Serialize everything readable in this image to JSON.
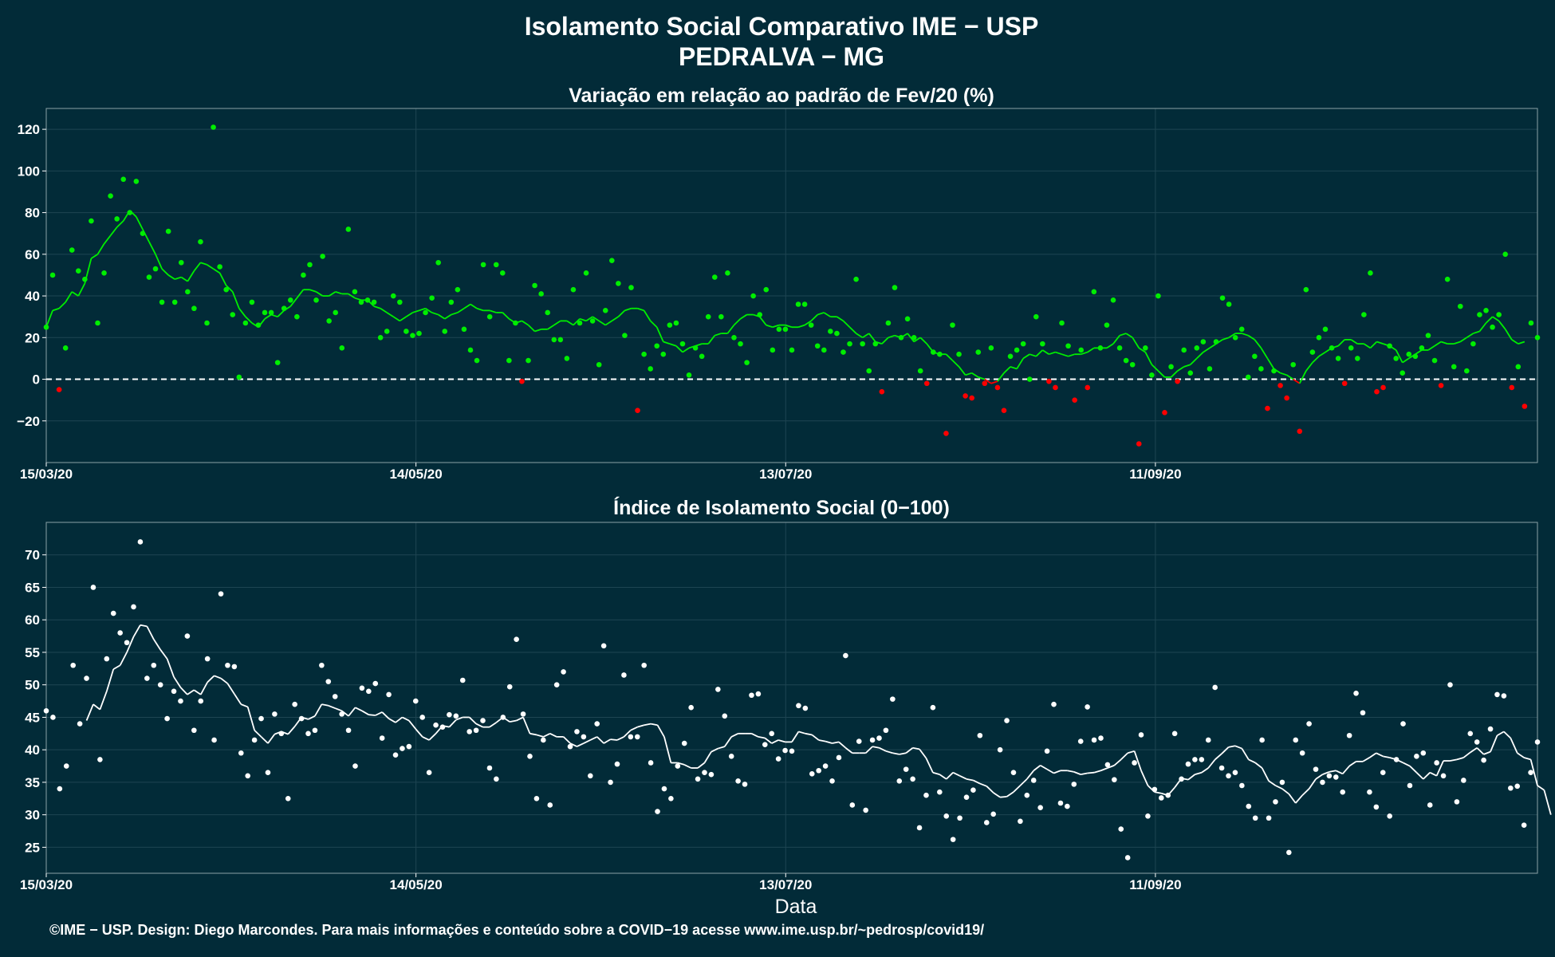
{
  "title_line1": "Isolamento Social Comparativo IME − USP",
  "title_line2": "PEDRALVA − MG",
  "footer": "©IME − USP. Design: Diego Marcondes. Para mais informações e conteúdo sobre a COVID−19 acesse www.ime.usp.br/~pedrosp/covid19/",
  "colors": {
    "background": "#022b38",
    "above_zero": "#00ee00",
    "below_zero": "#ff0000",
    "index_series": "#ffffff",
    "grid": "#1e4552"
  },
  "chart_data": [
    {
      "type": "scatter",
      "title": "Variação em relação ao padrão de Fev/20 (%)",
      "xlabel": "",
      "ylabel": "",
      "x_start": "2020-03-15",
      "x_end": "2020-11-12",
      "x_ticks": [
        "15/03/20",
        "14/05/20",
        "13/07/20",
        "11/09/20"
      ],
      "y_ticks": [
        "−20",
        "0",
        "20",
        "40",
        "60",
        "80",
        "100",
        "120"
      ],
      "ylim": [
        -40,
        130
      ],
      "reference_line": 0,
      "grid": true,
      "series": [
        {
          "values": [
            25,
            50,
            -5,
            15,
            62,
            52,
            48,
            76,
            27,
            51,
            88,
            77,
            96,
            80,
            95,
            70,
            49,
            53,
            37,
            71,
            37,
            56,
            42,
            34,
            66,
            27,
            121,
            54,
            43,
            31,
            1,
            27,
            37,
            26,
            32,
            32,
            8,
            34,
            38,
            30,
            50,
            55,
            38,
            59,
            28,
            32,
            15,
            72,
            42,
            37,
            38,
            37,
            20,
            23,
            40,
            37,
            23,
            21,
            22,
            32,
            39,
            56,
            23,
            37,
            43,
            24,
            14,
            9,
            55,
            30,
            55,
            51,
            9,
            27,
            -1,
            9,
            45,
            41,
            32,
            19,
            19,
            10,
            43,
            27,
            51,
            28,
            7,
            33,
            57,
            46,
            21,
            44,
            -15,
            12,
            5,
            16,
            12,
            26,
            27,
            17,
            2,
            15,
            11,
            30,
            49,
            30,
            51,
            20,
            17,
            8,
            40,
            31,
            43,
            14,
            24,
            24,
            14,
            36,
            36,
            26,
            16,
            14,
            23,
            22,
            13,
            17,
            48,
            17,
            4,
            17,
            -6,
            27,
            44,
            20,
            29,
            20,
            4,
            -2,
            13,
            12,
            -26,
            26,
            12,
            -8,
            -9,
            13,
            -2,
            15,
            -4,
            -15,
            11,
            14,
            17,
            0,
            30,
            17,
            -1,
            -4,
            27,
            16,
            -10,
            14,
            -4,
            42,
            15,
            26,
            38,
            15,
            9,
            7,
            -31,
            15,
            2,
            40,
            -16,
            6,
            -1,
            14,
            3,
            15,
            18,
            5,
            18,
            39,
            36,
            20,
            24,
            1,
            11,
            5,
            -14,
            4,
            -3,
            -9,
            7,
            -25,
            43,
            13,
            20,
            24,
            15,
            10,
            -2,
            15,
            10,
            31,
            51,
            -6,
            -4,
            16,
            10,
            3,
            12,
            11,
            15,
            21,
            9,
            -3,
            48,
            6,
            35,
            4,
            17,
            31,
            33,
            25,
            31,
            60,
            -4,
            6,
            -13,
            27,
            20
          ]
        },
        {
          "name": "",
          "values": [
            25,
            33,
            34,
            37,
            42,
            40,
            46,
            58,
            60,
            65,
            69,
            73,
            76,
            81,
            78,
            72,
            66,
            60,
            53,
            50,
            48,
            49,
            47,
            52,
            56,
            55,
            53,
            51,
            45,
            42,
            34,
            30,
            27,
            25,
            29,
            31,
            30,
            33,
            35,
            39,
            43,
            43,
            42,
            40,
            40,
            42,
            41,
            41,
            39,
            38,
            38,
            35,
            34,
            32,
            30,
            28,
            30,
            32,
            33,
            34,
            32,
            31,
            29,
            31,
            32,
            34,
            36,
            34,
            33,
            33,
            32,
            32,
            29,
            27,
            28,
            26,
            23,
            24,
            24,
            26,
            28,
            28,
            26,
            29,
            28,
            30,
            28,
            26,
            28,
            30,
            33,
            34,
            34,
            33,
            28,
            25,
            18,
            17,
            16,
            13,
            15,
            16,
            17,
            17,
            21,
            22,
            22,
            26,
            29,
            31,
            31,
            30,
            26,
            25,
            26,
            26,
            25,
            25,
            26,
            28,
            31,
            32,
            30,
            30,
            28,
            25,
            22,
            20,
            22,
            18,
            17,
            20,
            21,
            20,
            22,
            18,
            20,
            17,
            13,
            12,
            12,
            9,
            6,
            2,
            3,
            1,
            0,
            -2,
            -1,
            3,
            6,
            5,
            10,
            12,
            11,
            14,
            12,
            13,
            12,
            11,
            12,
            12,
            13,
            15,
            15,
            15,
            17,
            21,
            22,
            20,
            15,
            13,
            7,
            4,
            1,
            1,
            4,
            6,
            7,
            10,
            13,
            15,
            17,
            19,
            20,
            22,
            22,
            21,
            19,
            15,
            10,
            5,
            3,
            2,
            0,
            -2,
            4,
            8,
            11,
            13,
            15,
            16,
            19,
            19,
            17,
            17,
            15,
            18,
            17,
            16,
            14,
            8,
            10,
            12,
            14,
            14,
            16,
            18,
            17,
            17,
            18,
            20,
            22,
            23,
            27,
            30,
            28,
            24,
            19,
            17,
            18
          ]
        }
      ]
    },
    {
      "type": "scatter",
      "title": "Índice de Isolamento Social (0−100)",
      "xlabel": "Data",
      "ylabel": "",
      "x_start": "2020-03-15",
      "x_end": "2020-11-12",
      "x_ticks": [
        "15/03/20",
        "14/05/20",
        "13/07/20",
        "11/09/20"
      ],
      "y_ticks": [
        "25",
        "30",
        "35",
        "40",
        "45",
        "50",
        "55",
        "60",
        "65",
        "70"
      ],
      "ylim": [
        21,
        75
      ],
      "grid": true,
      "series": [
        {
          "values": [
            46,
            45,
            34,
            37.5,
            53,
            44,
            51,
            65,
            38.5,
            54,
            61,
            58,
            56.5,
            62,
            72,
            51,
            53,
            50,
            44.8,
            49,
            47.5,
            57.5,
            43,
            47.5,
            54,
            41.5,
            64,
            53,
            52.8,
            39.5,
            36,
            41.5,
            44.8,
            36.5,
            45.5,
            42.5,
            32.5,
            47,
            44.8,
            42.5,
            43,
            53,
            50.5,
            48.2,
            45.5,
            43,
            37.5,
            49.5,
            49,
            50.2,
            41.8,
            48.5,
            39.2,
            40.2,
            40.5,
            47.5,
            45,
            36.5,
            43.8,
            43.5,
            45.4,
            45.2,
            50.7,
            42.8,
            43,
            44.5,
            37.2,
            35.5,
            45,
            49.7,
            57,
            45.5,
            39,
            32.5,
            41.5,
            31.5,
            50,
            52,
            40.5,
            42.8,
            42,
            36,
            44,
            56,
            35,
            37.8,
            51.5,
            42,
            42,
            53,
            38,
            30.5,
            34,
            32.5,
            37.5,
            41,
            46.5,
            35.5,
            36.5,
            36.2,
            49.3,
            45.2,
            39,
            35.2,
            34.7,
            48.4,
            48.6,
            40.8,
            42.5,
            38.6,
            39.9,
            39.8,
            46.8,
            46.4,
            36.3,
            36.8,
            37.5,
            35.2,
            38.8,
            54.5,
            31.5,
            41.3,
            30.7,
            41.5,
            41.8,
            43,
            47.8,
            35.2,
            37,
            35.5,
            28,
            33,
            46.5,
            33.5,
            29.8,
            26.2,
            29.5,
            32.7,
            33.8,
            42.2,
            28.8,
            30.1,
            40,
            44.5,
            36.5,
            29,
            33,
            35.3,
            31.1,
            39.8,
            47,
            31.8,
            31.3,
            34.7,
            41.3,
            46.6,
            41.5,
            41.8,
            37.7,
            35.4,
            27.8,
            23.4,
            38,
            42.3,
            29.8,
            33.9,
            32.6,
            33,
            42.5,
            35.5,
            37.8,
            38.5,
            38.5,
            41.5,
            49.6,
            37.2,
            36,
            36.5,
            34.5,
            31.3,
            29.5,
            41.5,
            29.5,
            32,
            35,
            24.2,
            41.5,
            39.5,
            44,
            37,
            35,
            36,
            35.8,
            33.5,
            42.2,
            48.7,
            45.7,
            33.5,
            31.2,
            36.5,
            29.8,
            38.5,
            44,
            34.5,
            39,
            39.5,
            31.5,
            38,
            36,
            50,
            32,
            35.3,
            42.5,
            41.2,
            38.4,
            43.2,
            48.5,
            48.3,
            34.1,
            34.4,
            28.4,
            36.5,
            41.2
          ]
        },
        {
          "name": "",
          "values": [
            44.5,
            47,
            46.2,
            49,
            52.4,
            53,
            55,
            57.4,
            59.2,
            59,
            57,
            55.4,
            54,
            51.2,
            49.6,
            48.5,
            49.2,
            48.5,
            50.4,
            51.4,
            51,
            50.2,
            48.6,
            47,
            46.6,
            43,
            42,
            41,
            42.4,
            42.8,
            42.4,
            43.6,
            45,
            44.7,
            45.2,
            47,
            46.8,
            46.4,
            46,
            45.2,
            46.5,
            46,
            45.4,
            45.3,
            45.8,
            44.8,
            44.2,
            45,
            44.5,
            43.2,
            42,
            41.5,
            42.5,
            43.7,
            43.5,
            44.6,
            45,
            45,
            44,
            43.5,
            43.5,
            44.2,
            45,
            44.3,
            44.5,
            45,
            42.5,
            42.3,
            42,
            42.5,
            42,
            42,
            41,
            40.5,
            41,
            41.5,
            42,
            41,
            41.6,
            41.5,
            42,
            43,
            43.5,
            43.8,
            44,
            43.8,
            42,
            38,
            38,
            37.7,
            37.2,
            37.2,
            38,
            39.7,
            40.2,
            40.5,
            42,
            42.5,
            42.5,
            42.5,
            42,
            41.8,
            41,
            41.5,
            41.2,
            41.2,
            42.8,
            42.5,
            42.3,
            41.5,
            41.3,
            41,
            41.2,
            40.3,
            39.5,
            39.5,
            39.5,
            40.5,
            40.3,
            39.8,
            39.5,
            39.3,
            39.5,
            40.3,
            40.1,
            38.7,
            36.5,
            36.2,
            35.5,
            36.5,
            36,
            35.5,
            35.3,
            34.8,
            34.4,
            33.4,
            32.7,
            32.8,
            33.5,
            34.5,
            35.5,
            36.8,
            37.6,
            37,
            36.4,
            36.8,
            36.8,
            36.6,
            36.2,
            36.4,
            36.5,
            36.8,
            37.2,
            37.6,
            38.5,
            39.5,
            39.8,
            36.8,
            34.5,
            33.5,
            33.3,
            33,
            34.2,
            35.6,
            35.4,
            36.2,
            36.5,
            37.2,
            38.5,
            39.4,
            40.4,
            40.6,
            40.2,
            38.5,
            38,
            37.2,
            35.2,
            34.5,
            34,
            33.2,
            31.8,
            33,
            34,
            35.5,
            36.2,
            36.6,
            36.8,
            36.3,
            37.5,
            38.2,
            38.2,
            38.8,
            39.5,
            39,
            38.8,
            38.5,
            38,
            37.5,
            36.5,
            35.5,
            36.5,
            36,
            38.3,
            38.3,
            38.5,
            38.8,
            39.6,
            40.3,
            39.3,
            39.7,
            42.2,
            42.8,
            41.8,
            39.5,
            38.8,
            38.5,
            34.5,
            33.8,
            30
          ]
        }
      ]
    }
  ]
}
